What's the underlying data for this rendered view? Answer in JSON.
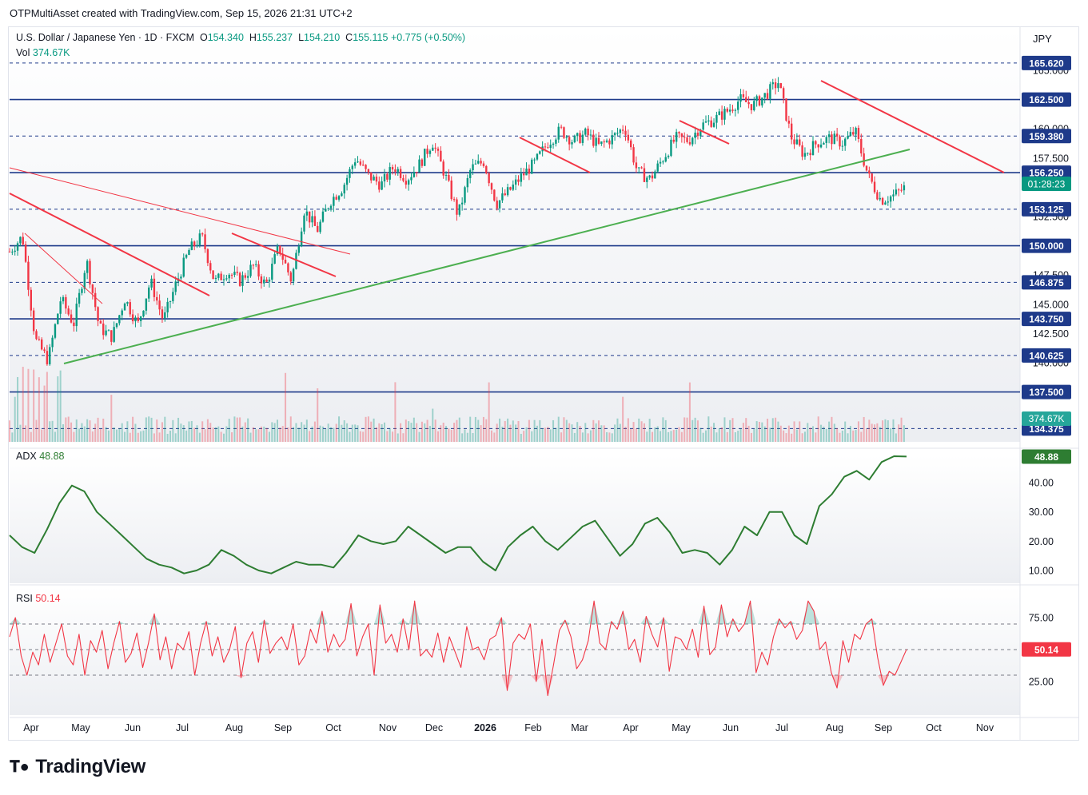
{
  "header": {
    "caption": "OTPMultiAsset created with TradingView.com, Sep 15, 2026 21:31 UTC+2"
  },
  "legend": {
    "symbol": "U.S. Dollar / Japanese Yen · 1D · FXCM",
    "ohlc": [
      {
        "k": "O",
        "v": "154.340"
      },
      {
        "k": "H",
        "v": "155.237"
      },
      {
        "k": "L",
        "v": "154.210"
      },
      {
        "k": "C",
        "v": "155.115"
      }
    ],
    "change": "+0.775 (+0.50%)",
    "vol_label": "Vol",
    "vol_value": "374.67K"
  },
  "currency": "JPY",
  "brand": "TradingView",
  "colors": {
    "up": "#089981",
    "down": "#f23645",
    "level_line": "#1e3a8a",
    "trend_red": "#f23645",
    "trend_green": "#4caf50",
    "adx": "#2e7d32",
    "rsi": "#f23645"
  },
  "chart_data": [
    {
      "type": "candlestick",
      "title": "U.S. Dollar / Japanese Yen · 1D · FXCM",
      "x_labels": [
        "Apr",
        "May",
        "Jun",
        "Jul",
        "Aug",
        "Sep",
        "Oct",
        "Nov",
        "Dec",
        "2026",
        "Feb",
        "Mar",
        "Apr",
        "May",
        "Jun",
        "Jul",
        "Aug",
        "Sep",
        "Oct",
        "Nov"
      ],
      "y_ticks": [
        "165.000",
        "160.000",
        "157.500",
        "155.000",
        "152.500",
        "150.000",
        "147.500",
        "145.000",
        "142.500",
        "140.000"
      ],
      "ylim": [
        133.0,
        168.0
      ],
      "price_path": [
        [
          "Mar",
          149.5
        ],
        [
          "Apr",
          150.8
        ],
        [
          "Apr",
          142.0
        ],
        [
          "Apr",
          140.2
        ],
        [
          "May",
          145.5
        ],
        [
          "May",
          143.3
        ],
        [
          "May",
          148.8
        ],
        [
          "May",
          143.0
        ],
        [
          "Jun",
          142.2
        ],
        [
          "Jun",
          145.5
        ],
        [
          "Jun",
          143.2
        ],
        [
          "Jul",
          147.0
        ],
        [
          "Jul",
          143.6
        ],
        [
          "Jul",
          146.8
        ],
        [
          "Jul",
          149.6
        ],
        [
          "Aug",
          150.8
        ],
        [
          "Aug",
          146.9
        ],
        [
          "Aug",
          147.8
        ],
        [
          "Sep",
          147.0
        ],
        [
          "Sep",
          148.3
        ],
        [
          "Sep",
          146.6
        ],
        [
          "Sep",
          149.9
        ],
        [
          "Oct",
          147.0
        ],
        [
          "Oct",
          153.1
        ],
        [
          "Oct",
          151.3
        ],
        [
          "Nov",
          153.8
        ],
        [
          "Nov",
          155.0
        ],
        [
          "Nov",
          157.5
        ],
        [
          "Dec",
          156.0
        ],
        [
          "Dec",
          155.2
        ],
        [
          "Dec",
          156.8
        ],
        [
          "Dec",
          155.7
        ],
        [
          "2026",
          157.0
        ],
        [
          "2026",
          158.9
        ],
        [
          "Jan",
          156.0
        ],
        [
          "Jan",
          152.6
        ],
        [
          "Jan",
          156.6
        ],
        [
          "Feb",
          157.2
        ],
        [
          "Feb",
          153.6
        ],
        [
          "Feb",
          154.7
        ],
        [
          "Feb",
          156.0
        ],
        [
          "Mar",
          157.1
        ],
        [
          "Mar",
          158.8
        ],
        [
          "Mar",
          159.9
        ],
        [
          "Apr",
          158.9
        ],
        [
          "Apr",
          159.6
        ],
        [
          "Apr",
          158.5
        ],
        [
          "Apr",
          159.2
        ],
        [
          "May",
          160.2
        ],
        [
          "May",
          156.3
        ],
        [
          "May",
          155.7
        ],
        [
          "May",
          157.5
        ],
        [
          "Jun",
          159.2
        ],
        [
          "Jun",
          159.0
        ],
        [
          "Jun",
          160.3
        ],
        [
          "Jun",
          160.8
        ],
        [
          "Jul",
          161.5
        ],
        [
          "Jul",
          162.5
        ],
        [
          "Jul",
          162.0
        ],
        [
          "Jul",
          162.9
        ],
        [
          "Jul",
          164.0
        ],
        [
          "Aug",
          159.3
        ],
        [
          "Aug",
          157.8
        ],
        [
          "Aug",
          158.8
        ],
        [
          "Aug",
          159.2
        ],
        [
          "Aug",
          158.8
        ],
        [
          "Sep",
          159.8
        ],
        [
          "Sep",
          156.0
        ],
        [
          "Sep",
          153.9
        ],
        [
          "Sep",
          154.3
        ],
        [
          "Sep",
          155.1
        ]
      ],
      "levels": [
        {
          "label": "165.620",
          "style": "dashed"
        },
        {
          "label": "162.500",
          "style": "solid"
        },
        {
          "label": "159.380",
          "style": "dashed"
        },
        {
          "label": "156.250",
          "style": "solid"
        },
        {
          "label": "153.125",
          "style": "dashed"
        },
        {
          "label": "150.000",
          "style": "solid"
        },
        {
          "label": "146.875",
          "style": "dashed"
        },
        {
          "label": "143.750",
          "style": "solid"
        },
        {
          "label": "140.625",
          "style": "dashed"
        },
        {
          "label": "137.500",
          "style": "solid"
        },
        {
          "label": "134.375",
          "style": "dashed"
        }
      ],
      "price_tags": [
        {
          "label": "01:28:23",
          "kind": "countdown"
        },
        {
          "label": "374.67K",
          "kind": "volume"
        }
      ],
      "trendlines": [
        {
          "color": "red",
          "from": [
            "Mar",
            154.0
          ],
          "to": [
            "Jun",
            145.5
          ]
        },
        {
          "color": "red",
          "from": [
            "Mar",
            155.5
          ],
          "to": [
            "Oct",
            149.5
          ]
        },
        {
          "color": "red",
          "from": [
            "Apr",
            150.8
          ],
          "to": [
            "May",
            146.3
          ]
        },
        {
          "color": "red",
          "from": [
            "Aug",
            151.2
          ],
          "to": [
            "Oct",
            146.7
          ]
        },
        {
          "color": "red",
          "from": [
            "Jan",
            159.2
          ],
          "to": [
            "Feb",
            156.4
          ]
        },
        {
          "color": "red",
          "from": [
            "May",
            160.5
          ],
          "to": [
            "Jun",
            158.9
          ]
        },
        {
          "color": "red",
          "from": [
            "Jul",
            164.1
          ],
          "to": [
            "Oct",
            156.4
          ]
        },
        {
          "color": "green",
          "from": [
            "May",
            140.1
          ],
          "to": [
            "Sep",
            158.4
          ]
        }
      ]
    },
    {
      "type": "line",
      "title": "ADX",
      "current_value": "48.88",
      "y_ticks": [
        "40.00",
        "30.00",
        "20.00",
        "10.00"
      ],
      "ylim": [
        5,
        52
      ],
      "series": [
        {
          "name": "ADX",
          "values": [
            22,
            18,
            16,
            24,
            33,
            39,
            37,
            30,
            26,
            22,
            18,
            14,
            12,
            11,
            9,
            10,
            12,
            17,
            15,
            12,
            10,
            9,
            11,
            13,
            12,
            12,
            11,
            16,
            22,
            20,
            19,
            20,
            25,
            22,
            19,
            16,
            18,
            18,
            13,
            10,
            18,
            22,
            25,
            20,
            17,
            21,
            25,
            27,
            21,
            15,
            19,
            26,
            28,
            23,
            16,
            17,
            16,
            12,
            17,
            25,
            22,
            30,
            30,
            22,
            19,
            32,
            36,
            42,
            44,
            41,
            47,
            49,
            48.9
          ]
        }
      ]
    },
    {
      "type": "line",
      "title": "RSI",
      "current_value": "50.14",
      "y_ticks": [
        "75.00",
        "50.00",
        "25.00"
      ],
      "ylim": [
        5,
        95
      ],
      "reference_lines": [
        70,
        50,
        30
      ],
      "series": [
        {
          "name": "RSI",
          "values": [
            60,
            75,
            45,
            30,
            48,
            38,
            62,
            40,
            55,
            70,
            45,
            38,
            62,
            30,
            57,
            48,
            65,
            35,
            55,
            72,
            40,
            47,
            63,
            36,
            55,
            78,
            42,
            60,
            35,
            55,
            50,
            64,
            30,
            55,
            72,
            45,
            60,
            40,
            50,
            68,
            28,
            55,
            64,
            40,
            73,
            47,
            55,
            60,
            50,
            70,
            38,
            45,
            66,
            55,
            80,
            48,
            62,
            52,
            58,
            86,
            45,
            60,
            70,
            30,
            85,
            55,
            62,
            48,
            74,
            50,
            88,
            45,
            50,
            44,
            63,
            40,
            60,
            48,
            36,
            68,
            50,
            52,
            42,
            58,
            61,
            75,
            18,
            55,
            62,
            58,
            70,
            25,
            58,
            14,
            38,
            65,
            73,
            60,
            35,
            42,
            57,
            88,
            55,
            50,
            72,
            66,
            80,
            50,
            58,
            40,
            76,
            62,
            52,
            75,
            33,
            60,
            58,
            50,
            66,
            44,
            84,
            46,
            52,
            85,
            60,
            74,
            64,
            70,
            88,
            32,
            48,
            38,
            60,
            74,
            67,
            72,
            58,
            65,
            88,
            80,
            50,
            56,
            32,
            20,
            57,
            40,
            62,
            58,
            70,
            74,
            44,
            22,
            33,
            30,
            40,
            50.1
          ]
        }
      ]
    }
  ]
}
